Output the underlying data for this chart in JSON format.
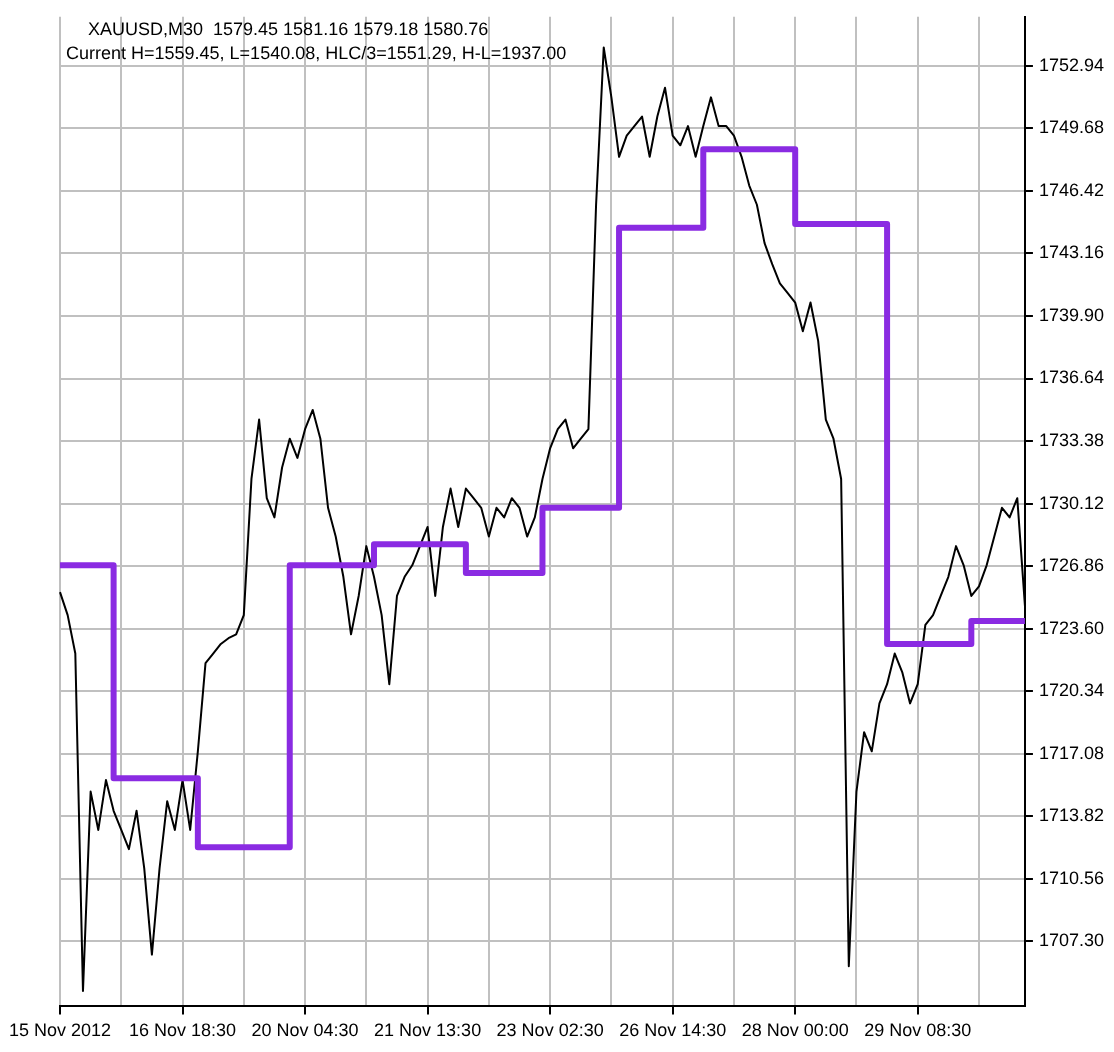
{
  "chart_data": {
    "type": "line",
    "title": "XAUUSD,M30  1579.45 1581.16 1579.18 1580.76",
    "subtitle": "Current H=1559.45, L=1540.08, HLC/3=1551.29, H-L=1937.00",
    "categories": [
      "15 Nov 2012",
      null,
      null,
      null,
      null,
      null,
      null,
      null,
      null,
      null,
      null,
      null,
      null,
      null,
      null,
      null,
      "16 Nov 18:30",
      null,
      null,
      null,
      null,
      null,
      null,
      null,
      null,
      null,
      null,
      null,
      null,
      null,
      null,
      null,
      "20 Nov 04:30",
      null,
      null,
      null,
      null,
      null,
      null,
      null,
      null,
      null,
      null,
      null,
      null,
      null,
      null,
      null,
      "21 Nov 13:30",
      null,
      null,
      null,
      null,
      null,
      null,
      null,
      null,
      null,
      null,
      null,
      null,
      null,
      null,
      null,
      "23 Nov 02:30",
      null,
      null,
      null,
      null,
      null,
      null,
      null,
      null,
      null,
      null,
      null,
      null,
      null,
      null,
      null,
      "26 Nov 14:30",
      null,
      null,
      null,
      null,
      null,
      null,
      null,
      null,
      null,
      null,
      null,
      null,
      null,
      null,
      null,
      "28 Nov 00:00",
      null,
      null,
      null,
      null,
      null,
      null,
      null,
      null,
      null,
      null,
      null,
      null,
      null,
      null,
      null,
      "29 Nov 08:30",
      null,
      null,
      null,
      null,
      null,
      null,
      null,
      null,
      null,
      null,
      null,
      null,
      null,
      null
    ],
    "series": [
      {
        "color": "#000000",
        "values": [
          1725.5,
          1724.3,
          1722.3,
          1704.7,
          1715.1,
          1713.1,
          1715.7,
          1714.1,
          1713.1,
          1712.1,
          1714.1,
          1711.1,
          1706.6,
          1711.1,
          1714.6,
          1713.1,
          1715.7,
          1713.1,
          1717.2,
          1721.8,
          1722.3,
          1722.8,
          1723.1,
          1723.3,
          1724.3,
          1731.4,
          1734.5,
          1730.4,
          1729.4,
          1732.0,
          1733.5,
          1732.5,
          1734.0,
          1735.0,
          1733.5,
          1729.9,
          1728.4,
          1726.3,
          1723.3,
          1725.3,
          1727.9,
          1726.3,
          1724.3,
          1720.7,
          1725.3,
          1726.3,
          1726.9,
          1727.9,
          1728.9,
          1725.3,
          1728.9,
          1730.9,
          1728.9,
          1730.9,
          1730.4,
          1729.9,
          1728.4,
          1729.9,
          1729.4,
          1730.4,
          1729.9,
          1728.4,
          1729.4,
          1731.4,
          1733.0,
          1734.0,
          1734.5,
          1733.0,
          1733.5,
          1734.0,
          1745.7,
          1753.9,
          1751.3,
          1748.2,
          1749.3,
          1749.8,
          1750.3,
          1748.2,
          1750.3,
          1751.8,
          1749.3,
          1748.8,
          1749.8,
          1748.2,
          1749.8,
          1751.3,
          1749.8,
          1749.8,
          1749.3,
          1748.2,
          1746.7,
          1745.7,
          1743.7,
          1742.6,
          1741.6,
          1741.1,
          1740.6,
          1739.1,
          1740.6,
          1738.6,
          1734.5,
          1733.5,
          1731.4,
          1706.0,
          1715.1,
          1718.2,
          1717.2,
          1719.7,
          1720.7,
          1722.3,
          1721.3,
          1719.7,
          1720.7,
          1723.8,
          1724.3,
          1725.3,
          1726.3,
          1727.9,
          1726.9,
          1725.3,
          1725.8,
          1726.9,
          1728.4,
          1729.9,
          1729.4,
          1730.4,
          1724.8
        ]
      },
      {
        "type": "step",
        "color": "#8a2be2",
        "values": [
          1726.9,
          1726.9,
          1726.9,
          1726.9,
          1726.9,
          1726.9,
          1726.9,
          1715.8,
          1715.8,
          1715.8,
          1715.8,
          1715.8,
          1715.8,
          1715.8,
          1715.8,
          1715.8,
          1715.8,
          1715.8,
          1712.2,
          1712.2,
          1712.2,
          1712.2,
          1712.2,
          1712.2,
          1712.2,
          1712.2,
          1712.2,
          1712.2,
          1712.2,
          1712.2,
          1726.9,
          1726.9,
          1726.9,
          1726.9,
          1726.9,
          1726.9,
          1726.9,
          1726.9,
          1726.9,
          1726.9,
          1726.9,
          1728.0,
          1728.0,
          1728.0,
          1728.0,
          1728.0,
          1728.0,
          1728.0,
          1728.0,
          1728.0,
          1728.0,
          1728.0,
          1728.0,
          1726.5,
          1726.5,
          1726.5,
          1726.5,
          1726.5,
          1726.5,
          1726.5,
          1726.5,
          1726.5,
          1726.5,
          1729.9,
          1729.9,
          1729.9,
          1729.9,
          1729.9,
          1729.9,
          1729.9,
          1729.9,
          1729.9,
          1729.9,
          1744.5,
          1744.5,
          1744.5,
          1744.5,
          1744.5,
          1744.5,
          1744.5,
          1744.5,
          1744.5,
          1744.5,
          1744.5,
          1748.6,
          1748.6,
          1748.6,
          1748.6,
          1748.6,
          1748.6,
          1748.6,
          1748.6,
          1748.6,
          1748.6,
          1748.6,
          1748.6,
          1744.7,
          1744.7,
          1744.7,
          1744.7,
          1744.7,
          1744.7,
          1744.7,
          1744.7,
          1744.7,
          1744.7,
          1744.7,
          1744.7,
          1722.8,
          1722.8,
          1722.8,
          1722.8,
          1722.8,
          1722.8,
          1722.8,
          1722.8,
          1722.8,
          1722.8,
          1722.8,
          1724.0,
          1724.0,
          1724.0,
          1724.0,
          1724.0,
          1724.0,
          1724.0,
          1724.0
        ]
      }
    ],
    "ylim": [
      1703.9,
      1755.5
    ],
    "yticks": [
      {
        "value": 1707.3,
        "label": "1707.30"
      },
      1710.56,
      1713.82,
      1717.08,
      1720.34,
      {
        "value": 1723.6,
        "label": "1723.60"
      },
      1726.86,
      1730.12,
      1733.38,
      1736.64,
      {
        "value": 1739.9,
        "label": "1739.90"
      },
      1743.16,
      1746.42,
      1749.68,
      1752.94
    ],
    "grid": true,
    "legend": false,
    "marker": "none",
    "line_style": "solid"
  }
}
